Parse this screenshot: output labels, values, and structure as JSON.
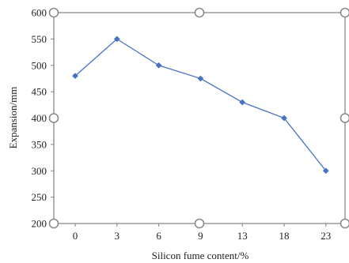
{
  "chart_data": {
    "type": "line",
    "categories": [
      "0",
      "3",
      "6",
      "9",
      "13",
      "18",
      "23"
    ],
    "series": [
      {
        "values": [
          480,
          550,
          500,
          475,
          430,
          400,
          300
        ]
      }
    ],
    "xlabel": "Silicon fume content/%",
    "ylabel": "Expansion/mm",
    "ylim": [
      200,
      600
    ],
    "yticks": [
      200,
      250,
      300,
      350,
      400,
      450,
      500,
      550,
      600
    ],
    "grid": false,
    "line_color": "#4472C4",
    "marker": "diamond"
  }
}
